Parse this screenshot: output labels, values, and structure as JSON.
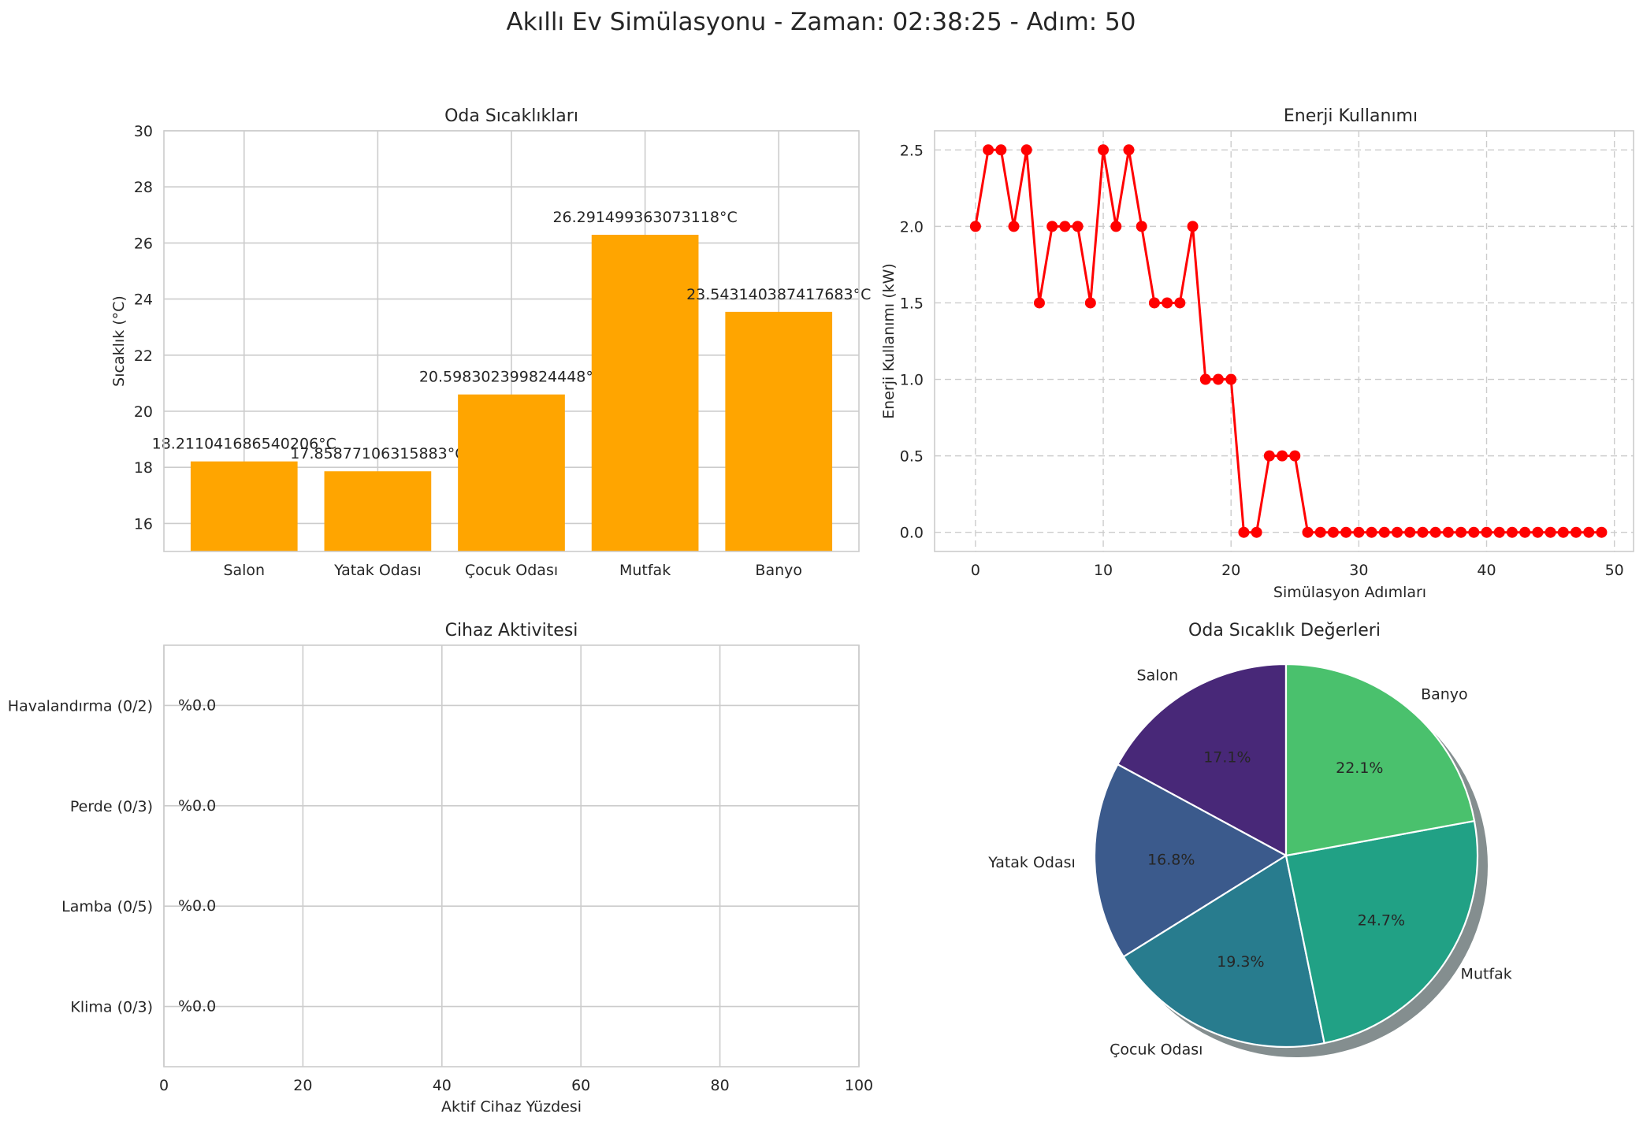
{
  "suptitle": "Akıllı Ev Simülasyonu - Zaman: 02:38:25 - Adım: 50",
  "colors": {
    "bar": "#ffa500",
    "line": "#ff0000",
    "pie": [
      "#482878",
      "#3b5a8c",
      "#287c8e",
      "#21a185",
      "#4ac16d"
    ]
  },
  "chart_data": [
    {
      "type": "bar",
      "title": "Oda Sıcaklıkları",
      "xlabel": "",
      "ylabel": "Sıcaklık (°C)",
      "categories": [
        "Salon",
        "Yatak Odası",
        "Çocuk Odası",
        "Mutfak",
        "Banyo"
      ],
      "values": [
        18.211041686540206,
        17.85877106315883,
        20.598302399824448,
        26.291499363073118,
        23.543140387417683
      ],
      "data_labels": [
        "18.211041686540206°C",
        "17.85877106315883°C",
        "20.598302399824448°C",
        "26.291499363073118°C",
        "23.543140387417683°C"
      ],
      "ylim": [
        15,
        30
      ],
      "yticks": [
        16,
        18,
        20,
        22,
        24,
        26,
        28,
        30
      ],
      "grid": true
    },
    {
      "type": "line",
      "title": "Enerji Kullanımı",
      "xlabel": "Simülasyon Adımları",
      "ylabel": "Enerji Kullanımı (kW)",
      "x": [
        0,
        1,
        2,
        3,
        4,
        5,
        6,
        7,
        8,
        9,
        10,
        11,
        12,
        13,
        14,
        15,
        16,
        17,
        18,
        19,
        20,
        21,
        22,
        23,
        24,
        25,
        26,
        27,
        28,
        29,
        30,
        31,
        32,
        33,
        34,
        35,
        36,
        37,
        38,
        39,
        40,
        41,
        42,
        43,
        44,
        45,
        46,
        47,
        48,
        49
      ],
      "y": [
        2.0,
        2.5,
        2.5,
        2.0,
        2.5,
        1.5,
        2.0,
        2.0,
        2.0,
        1.5,
        2.5,
        2.0,
        2.5,
        2.0,
        1.5,
        1.5,
        1.5,
        2.0,
        1.0,
        1.0,
        1.0,
        0,
        0,
        0.5,
        0.5,
        0.5,
        0,
        0,
        0,
        0,
        0,
        0,
        0,
        0,
        0,
        0,
        0,
        0,
        0,
        0,
        0,
        0,
        0,
        0,
        0,
        0,
        0,
        0,
        0,
        0
      ],
      "xlim": [
        -3.2,
        51.5
      ],
      "ylim": [
        -0.125,
        2.625
      ],
      "xticks": [
        0,
        10,
        20,
        30,
        40,
        50
      ],
      "yticks": [
        "0.0",
        "0.5",
        "1.0",
        "1.5",
        "2.0",
        "2.5"
      ],
      "grid": "dashed"
    },
    {
      "type": "bar",
      "orientation": "horizontal",
      "title": "Cihaz Aktivitesi",
      "xlabel": "Aktif Cihaz Yüzdesi",
      "ylabel": "",
      "categories": [
        "Havalandırma (0/2)",
        "Perde (0/3)",
        "Lamba (0/5)",
        "Klima (0/3)"
      ],
      "values": [
        0,
        0,
        0,
        0
      ],
      "data_labels": [
        "%0.0",
        "%0.0",
        "%0.0",
        "%0.0"
      ],
      "xlim": [
        0,
        100
      ],
      "xticks": [
        0,
        20,
        40,
        60,
        80,
        100
      ],
      "grid": true
    },
    {
      "type": "pie",
      "title": "Oda Sıcaklık Değerleri",
      "labels": [
        "Salon",
        "Yatak Odası",
        "Çocuk Odası",
        "Mutfak",
        "Banyo"
      ],
      "values": [
        18.211041686540206,
        17.85877106315883,
        20.598302399824448,
        26.291499363073118,
        23.543140387417683
      ],
      "percent_labels": [
        "17.1%",
        "16.8%",
        "19.3%",
        "24.7%",
        "22.1%"
      ],
      "startangle": 90,
      "shadow": true
    }
  ]
}
